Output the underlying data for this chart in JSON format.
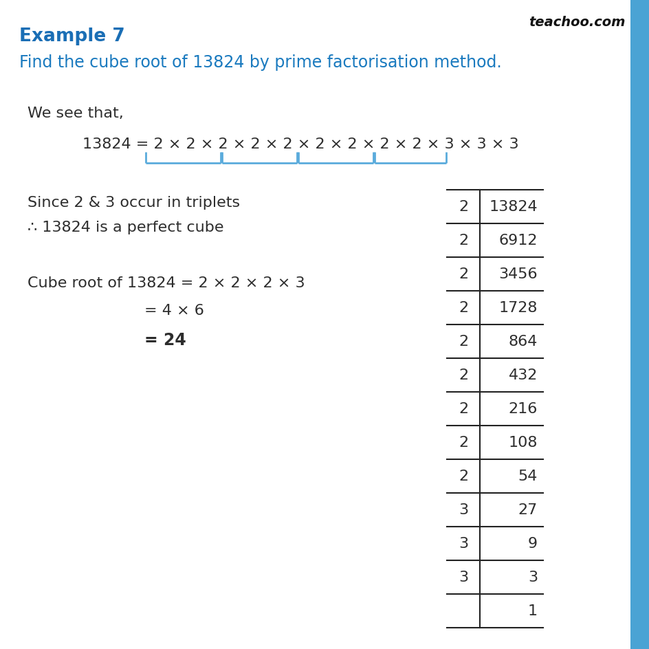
{
  "title": "Example 7",
  "subtitle": "Find the cube root of 13824 by prime factorisation method.",
  "watermark": "teachoo.com",
  "we_see_that": "We see that,",
  "factorisation_line": "13824 = 2 × 2 × 2 × 2 × 2 × 2 × 2 × 2 × 2 × 3 × 3 × 3",
  "since_text": "Since 2 & 3 occur in triplets",
  "therefore_text": "∴ 13824 is a perfect cube",
  "cube_root_line1": "Cube root of 13824 = 2 × 2 × 2 × 3",
  "cube_root_line2": "= 4 × 6",
  "cube_root_line3": "= 24",
  "division_table": [
    [
      "2",
      "13824"
    ],
    [
      "2",
      "6912"
    ],
    [
      "2",
      "3456"
    ],
    [
      "2",
      "1728"
    ],
    [
      "2",
      "864"
    ],
    [
      "2",
      "432"
    ],
    [
      "2",
      "216"
    ],
    [
      "2",
      "108"
    ],
    [
      "2",
      "54"
    ],
    [
      "3",
      "27"
    ],
    [
      "3",
      "9"
    ],
    [
      "3",
      "3"
    ],
    [
      "",
      "1"
    ]
  ],
  "title_color": "#1a6eb5",
  "subtitle_color": "#1a7abf",
  "body_color": "#2d2d2d",
  "bracket_color": "#5aabdc",
  "right_bar_color": "#4aa3d4",
  "bg_color": "#ffffff",
  "table_line_color": "#222222",
  "watermark_color": "#111111"
}
